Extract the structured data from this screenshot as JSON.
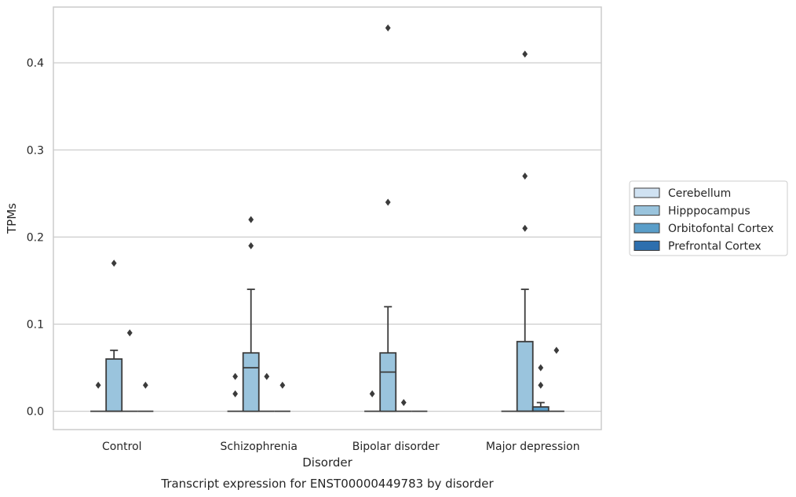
{
  "chart_data": {
    "type": "box",
    "title": "",
    "caption": "Transcript expression for ENST00000449783 by disorder",
    "xlabel": "Disorder",
    "ylabel": "TPMs",
    "ylim": [
      -0.021,
      0.464
    ],
    "yticks": [
      "0.0",
      "0.1",
      "0.2",
      "0.3",
      "0.4"
    ],
    "categories": [
      "Control",
      "Schizophrenia",
      "Bipolar disorder",
      "Major depression"
    ],
    "grid": "horizontal",
    "legend": {
      "placement": "right"
    },
    "series": [
      {
        "name": "Cerebellum",
        "color": "#d0e2f2",
        "boxes": [
          {
            "whislo": 0,
            "q1": 0,
            "med": 0,
            "q3": 0,
            "whishi": 0,
            "fliers": [
              0.03
            ]
          },
          {
            "whislo": 0,
            "q1": 0,
            "med": 0,
            "q3": 0,
            "whishi": 0,
            "fliers": [
              0.04,
              0.02
            ]
          },
          {
            "whislo": 0,
            "q1": 0,
            "med": 0,
            "q3": 0,
            "whishi": 0,
            "fliers": [
              0.02
            ]
          },
          {
            "whislo": 0,
            "q1": 0,
            "med": 0,
            "q3": 0,
            "whishi": 0,
            "fliers": []
          }
        ]
      },
      {
        "name": "Hipppocampus",
        "color": "#9ac4dd",
        "boxes": [
          {
            "whislo": 0,
            "q1": 0,
            "med": 0,
            "q3": 0.06,
            "whishi": 0.07,
            "fliers": [
              0.17
            ]
          },
          {
            "whislo": 0,
            "q1": 0,
            "med": 0.05,
            "q3": 0.067,
            "whishi": 0.14,
            "fliers": [
              0.19,
              0.22
            ]
          },
          {
            "whislo": 0,
            "q1": 0,
            "med": 0.045,
            "q3": 0.067,
            "whishi": 0.12,
            "fliers": [
              0.24,
              0.44
            ]
          },
          {
            "whislo": 0,
            "q1": 0,
            "med": 0,
            "q3": 0.08,
            "whishi": 0.14,
            "fliers": [
              0.21,
              0.27,
              0.41
            ]
          }
        ]
      },
      {
        "name": "Orbitofontal Cortex",
        "color": "#5a9ec9",
        "boxes": [
          {
            "whislo": 0,
            "q1": 0,
            "med": 0,
            "q3": 0,
            "whishi": 0,
            "fliers": [
              0.09
            ]
          },
          {
            "whislo": 0,
            "q1": 0,
            "med": 0,
            "q3": 0,
            "whishi": 0,
            "fliers": [
              0.04
            ]
          },
          {
            "whislo": 0,
            "q1": 0,
            "med": 0,
            "q3": 0,
            "whishi": 0,
            "fliers": [
              0.01
            ]
          },
          {
            "whislo": 0,
            "q1": 0,
            "med": 0,
            "q3": 0.005,
            "whishi": 0.01,
            "fliers": [
              0.03,
              0.05
            ]
          }
        ]
      },
      {
        "name": "Prefrontal Cortex",
        "color": "#2d6fae",
        "boxes": [
          {
            "whislo": 0,
            "q1": 0,
            "med": 0,
            "q3": 0,
            "whishi": 0,
            "fliers": [
              0.03
            ]
          },
          {
            "whislo": 0,
            "q1": 0,
            "med": 0,
            "q3": 0,
            "whishi": 0,
            "fliers": [
              0.03
            ]
          },
          {
            "whislo": 0,
            "q1": 0,
            "med": 0,
            "q3": 0,
            "whishi": 0,
            "fliers": []
          },
          {
            "whislo": 0,
            "q1": 0,
            "med": 0,
            "q3": 0,
            "whishi": 0,
            "fliers": [
              0.07
            ]
          }
        ]
      }
    ]
  }
}
